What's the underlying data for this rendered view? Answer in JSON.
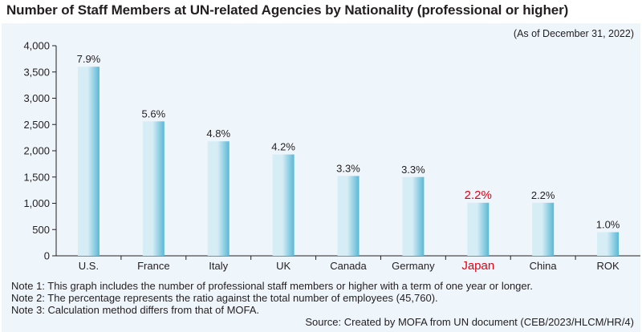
{
  "title": "Number of Staff Members at UN-related Agencies by Nationality (professional or higher)",
  "as_of": "(As of December 31, 2022)",
  "notes": [
    "Note 1: This graph includes the number of professional staff members or higher with a term of one year or longer.",
    "Note 2: The percentage represents the ratio against the total number of employees (45,760).",
    "Note 3: Calculation method differs from that of MOFA."
  ],
  "source": "Source: Created by MOFA from UN document  (CEB/2023/HLCM/HR/4)",
  "colors": {
    "bar_light": "#d7edf6",
    "bar_dark": "#5ab8d6",
    "highlight": "#e60012",
    "panel": "#eef5fb"
  },
  "chart_data": {
    "type": "bar",
    "categories": [
      "U.S.",
      "France",
      "Italy",
      "UK",
      "Canada",
      "Germany",
      "Japan",
      "China",
      "ROK"
    ],
    "values": [
      3600,
      2560,
      2180,
      1930,
      1520,
      1500,
      1010,
      1010,
      450
    ],
    "data_labels": [
      "7.9%",
      "5.6%",
      "4.8%",
      "4.2%",
      "3.3%",
      "3.3%",
      "2.2%",
      "2.2%",
      "1.0%"
    ],
    "highlight_category": "Japan",
    "ylim": [
      0,
      4000
    ],
    "yticks": [
      0,
      500,
      1000,
      1500,
      2000,
      2500,
      3000,
      3500,
      4000
    ],
    "ytick_labels": [
      "0",
      "500",
      "1,000",
      "1,500",
      "2,000",
      "2,500",
      "3,000",
      "3,500",
      "4,000"
    ],
    "xlabel": "",
    "ylabel": "",
    "grid": false,
    "legend": false
  }
}
